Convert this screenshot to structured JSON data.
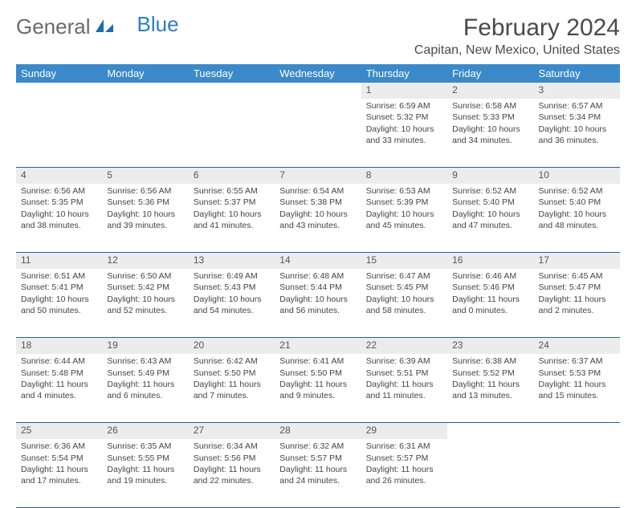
{
  "logo": {
    "text1": "General",
    "text2": "Blue"
  },
  "title": "February 2024",
  "location": "Capitan, New Mexico, United States",
  "header_bg": "#3b89c9",
  "daynum_bg": "#ececec",
  "border_color": "#2d5f8f",
  "weekdays": [
    "Sunday",
    "Monday",
    "Tuesday",
    "Wednesday",
    "Thursday",
    "Friday",
    "Saturday"
  ],
  "weeks": [
    {
      "nums": [
        "",
        "",
        "",
        "",
        "1",
        "2",
        "3"
      ],
      "cells": [
        null,
        null,
        null,
        null,
        {
          "sunrise": "Sunrise: 6:59 AM",
          "sunset": "Sunset: 5:32 PM",
          "daylight": "Daylight: 10 hours and 33 minutes."
        },
        {
          "sunrise": "Sunrise: 6:58 AM",
          "sunset": "Sunset: 5:33 PM",
          "daylight": "Daylight: 10 hours and 34 minutes."
        },
        {
          "sunrise": "Sunrise: 6:57 AM",
          "sunset": "Sunset: 5:34 PM",
          "daylight": "Daylight: 10 hours and 36 minutes."
        }
      ]
    },
    {
      "nums": [
        "4",
        "5",
        "6",
        "7",
        "8",
        "9",
        "10"
      ],
      "cells": [
        {
          "sunrise": "Sunrise: 6:56 AM",
          "sunset": "Sunset: 5:35 PM",
          "daylight": "Daylight: 10 hours and 38 minutes."
        },
        {
          "sunrise": "Sunrise: 6:56 AM",
          "sunset": "Sunset: 5:36 PM",
          "daylight": "Daylight: 10 hours and 39 minutes."
        },
        {
          "sunrise": "Sunrise: 6:55 AM",
          "sunset": "Sunset: 5:37 PM",
          "daylight": "Daylight: 10 hours and 41 minutes."
        },
        {
          "sunrise": "Sunrise: 6:54 AM",
          "sunset": "Sunset: 5:38 PM",
          "daylight": "Daylight: 10 hours and 43 minutes."
        },
        {
          "sunrise": "Sunrise: 6:53 AM",
          "sunset": "Sunset: 5:39 PM",
          "daylight": "Daylight: 10 hours and 45 minutes."
        },
        {
          "sunrise": "Sunrise: 6:52 AM",
          "sunset": "Sunset: 5:40 PM",
          "daylight": "Daylight: 10 hours and 47 minutes."
        },
        {
          "sunrise": "Sunrise: 6:52 AM",
          "sunset": "Sunset: 5:40 PM",
          "daylight": "Daylight: 10 hours and 48 minutes."
        }
      ]
    },
    {
      "nums": [
        "11",
        "12",
        "13",
        "14",
        "15",
        "16",
        "17"
      ],
      "cells": [
        {
          "sunrise": "Sunrise: 6:51 AM",
          "sunset": "Sunset: 5:41 PM",
          "daylight": "Daylight: 10 hours and 50 minutes."
        },
        {
          "sunrise": "Sunrise: 6:50 AM",
          "sunset": "Sunset: 5:42 PM",
          "daylight": "Daylight: 10 hours and 52 minutes."
        },
        {
          "sunrise": "Sunrise: 6:49 AM",
          "sunset": "Sunset: 5:43 PM",
          "daylight": "Daylight: 10 hours and 54 minutes."
        },
        {
          "sunrise": "Sunrise: 6:48 AM",
          "sunset": "Sunset: 5:44 PM",
          "daylight": "Daylight: 10 hours and 56 minutes."
        },
        {
          "sunrise": "Sunrise: 6:47 AM",
          "sunset": "Sunset: 5:45 PM",
          "daylight": "Daylight: 10 hours and 58 minutes."
        },
        {
          "sunrise": "Sunrise: 6:46 AM",
          "sunset": "Sunset: 5:46 PM",
          "daylight": "Daylight: 11 hours and 0 minutes."
        },
        {
          "sunrise": "Sunrise: 6:45 AM",
          "sunset": "Sunset: 5:47 PM",
          "daylight": "Daylight: 11 hours and 2 minutes."
        }
      ]
    },
    {
      "nums": [
        "18",
        "19",
        "20",
        "21",
        "22",
        "23",
        "24"
      ],
      "cells": [
        {
          "sunrise": "Sunrise: 6:44 AM",
          "sunset": "Sunset: 5:48 PM",
          "daylight": "Daylight: 11 hours and 4 minutes."
        },
        {
          "sunrise": "Sunrise: 6:43 AM",
          "sunset": "Sunset: 5:49 PM",
          "daylight": "Daylight: 11 hours and 6 minutes."
        },
        {
          "sunrise": "Sunrise: 6:42 AM",
          "sunset": "Sunset: 5:50 PM",
          "daylight": "Daylight: 11 hours and 7 minutes."
        },
        {
          "sunrise": "Sunrise: 6:41 AM",
          "sunset": "Sunset: 5:50 PM",
          "daylight": "Daylight: 11 hours and 9 minutes."
        },
        {
          "sunrise": "Sunrise: 6:39 AM",
          "sunset": "Sunset: 5:51 PM",
          "daylight": "Daylight: 11 hours and 11 minutes."
        },
        {
          "sunrise": "Sunrise: 6:38 AM",
          "sunset": "Sunset: 5:52 PM",
          "daylight": "Daylight: 11 hours and 13 minutes."
        },
        {
          "sunrise": "Sunrise: 6:37 AM",
          "sunset": "Sunset: 5:53 PM",
          "daylight": "Daylight: 11 hours and 15 minutes."
        }
      ]
    },
    {
      "nums": [
        "25",
        "26",
        "27",
        "28",
        "29",
        "",
        ""
      ],
      "cells": [
        {
          "sunrise": "Sunrise: 6:36 AM",
          "sunset": "Sunset: 5:54 PM",
          "daylight": "Daylight: 11 hours and 17 minutes."
        },
        {
          "sunrise": "Sunrise: 6:35 AM",
          "sunset": "Sunset: 5:55 PM",
          "daylight": "Daylight: 11 hours and 19 minutes."
        },
        {
          "sunrise": "Sunrise: 6:34 AM",
          "sunset": "Sunset: 5:56 PM",
          "daylight": "Daylight: 11 hours and 22 minutes."
        },
        {
          "sunrise": "Sunrise: 6:32 AM",
          "sunset": "Sunset: 5:57 PM",
          "daylight": "Daylight: 11 hours and 24 minutes."
        },
        {
          "sunrise": "Sunrise: 6:31 AM",
          "sunset": "Sunset: 5:57 PM",
          "daylight": "Daylight: 11 hours and 26 minutes."
        },
        null,
        null
      ]
    }
  ]
}
